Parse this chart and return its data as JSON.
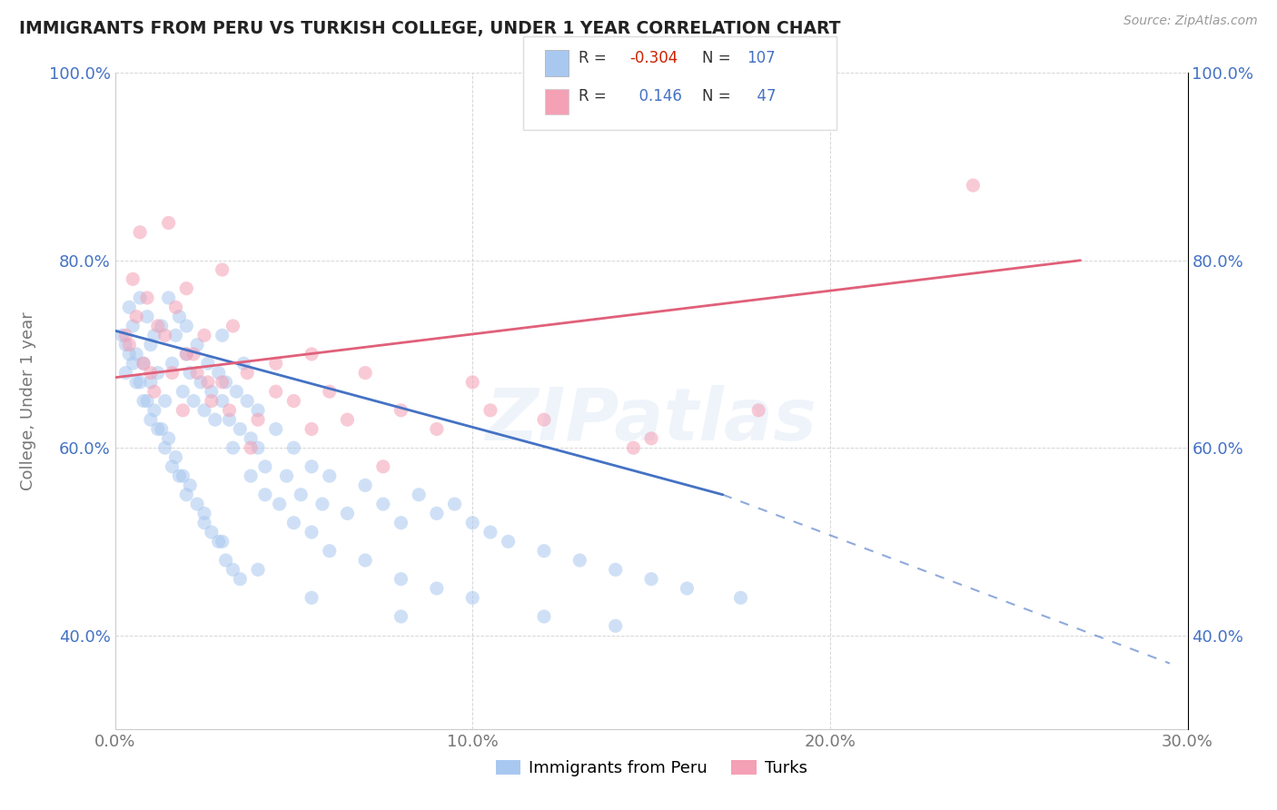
{
  "title": "IMMIGRANTS FROM PERU VS TURKISH COLLEGE, UNDER 1 YEAR CORRELATION CHART",
  "source": "Source: ZipAtlas.com",
  "ylabel": "College, Under 1 year",
  "legend_label_1": "Immigrants from Peru",
  "legend_label_2": "Turks",
  "R1": -0.304,
  "N1": 107,
  "R2": 0.146,
  "N2": 47,
  "xlim": [
    0.0,
    30.0
  ],
  "ylim": [
    30.0,
    100.0
  ],
  "color_blue": "#A8C8F0",
  "color_pink": "#F4A0B5",
  "color_blue_line": "#4472C4",
  "color_pink_line": "#E0607A",
  "color_blue_dash": "#9DB8D8",
  "color_axis_label": "#4472C4",
  "background": "#ffffff",
  "blue_line_x0": 0.0,
  "blue_line_y0": 72.5,
  "blue_line_x1": 17.0,
  "blue_line_y1": 55.0,
  "blue_dash_x1": 29.5,
  "blue_dash_y1": 37.0,
  "pink_line_x0": 0.0,
  "pink_line_y0": 67.5,
  "pink_line_x1": 27.0,
  "pink_line_y1": 80.0,
  "peru_x": [
    0.2,
    0.3,
    0.4,
    0.5,
    0.6,
    0.7,
    0.8,
    0.9,
    1.0,
    1.0,
    1.1,
    1.2,
    1.3,
    1.4,
    1.5,
    1.6,
    1.7,
    1.8,
    1.9,
    2.0,
    2.0,
    2.1,
    2.2,
    2.3,
    2.4,
    2.5,
    2.6,
    2.7,
    2.8,
    2.9,
    3.0,
    3.0,
    3.1,
    3.2,
    3.3,
    3.4,
    3.5,
    3.6,
    3.7,
    3.8,
    4.0,
    4.0,
    4.2,
    4.5,
    4.8,
    5.0,
    5.2,
    5.5,
    5.8,
    6.0,
    6.5,
    7.0,
    7.5,
    8.0,
    8.5,
    9.0,
    9.5,
    10.0,
    10.5,
    11.0,
    12.0,
    13.0,
    14.0,
    15.0,
    16.0,
    17.5,
    0.3,
    0.5,
    0.7,
    0.9,
    1.1,
    1.3,
    1.5,
    1.7,
    1.9,
    2.1,
    2.3,
    2.5,
    2.7,
    2.9,
    3.1,
    3.3,
    3.5,
    3.8,
    4.2,
    4.6,
    5.0,
    5.5,
    6.0,
    7.0,
    8.0,
    9.0,
    10.0,
    12.0,
    14.0,
    0.4,
    0.6,
    0.8,
    1.0,
    1.2,
    1.4,
    1.6,
    1.8,
    2.0,
    2.5,
    3.0,
    4.0,
    5.5,
    8.0
  ],
  "peru_y": [
    72,
    68,
    75,
    73,
    70,
    76,
    69,
    74,
    71,
    67,
    72,
    68,
    73,
    65,
    76,
    69,
    72,
    74,
    66,
    70,
    73,
    68,
    65,
    71,
    67,
    64,
    69,
    66,
    63,
    68,
    65,
    72,
    67,
    63,
    60,
    66,
    62,
    69,
    65,
    61,
    64,
    60,
    58,
    62,
    57,
    60,
    55,
    58,
    54,
    57,
    53,
    56,
    54,
    52,
    55,
    53,
    54,
    52,
    51,
    50,
    49,
    48,
    47,
    46,
    45,
    44,
    71,
    69,
    67,
    65,
    64,
    62,
    61,
    59,
    57,
    56,
    54,
    53,
    51,
    50,
    48,
    47,
    46,
    57,
    55,
    54,
    52,
    51,
    49,
    48,
    46,
    45,
    44,
    42,
    41,
    70,
    67,
    65,
    63,
    62,
    60,
    58,
    57,
    55,
    52,
    50,
    47,
    44,
    42
  ],
  "turks_x": [
    0.3,
    0.5,
    0.7,
    0.9,
    1.0,
    1.2,
    1.5,
    1.7,
    2.0,
    2.0,
    2.3,
    2.5,
    2.7,
    3.0,
    3.0,
    3.3,
    3.7,
    4.0,
    4.5,
    5.0,
    5.5,
    6.0,
    6.5,
    7.0,
    8.0,
    9.0,
    10.0,
    12.0,
    15.0,
    18.0,
    24.0,
    0.4,
    0.6,
    0.8,
    1.1,
    1.4,
    1.6,
    1.9,
    2.2,
    2.6,
    3.2,
    3.8,
    4.5,
    5.5,
    7.5,
    10.5,
    14.5
  ],
  "turks_y": [
    72,
    78,
    83,
    76,
    68,
    73,
    84,
    75,
    70,
    77,
    68,
    72,
    65,
    79,
    67,
    73,
    68,
    63,
    69,
    65,
    70,
    66,
    63,
    68,
    64,
    62,
    67,
    63,
    61,
    64,
    88,
    71,
    74,
    69,
    66,
    72,
    68,
    64,
    70,
    67,
    64,
    60,
    66,
    62,
    58,
    64,
    60
  ]
}
